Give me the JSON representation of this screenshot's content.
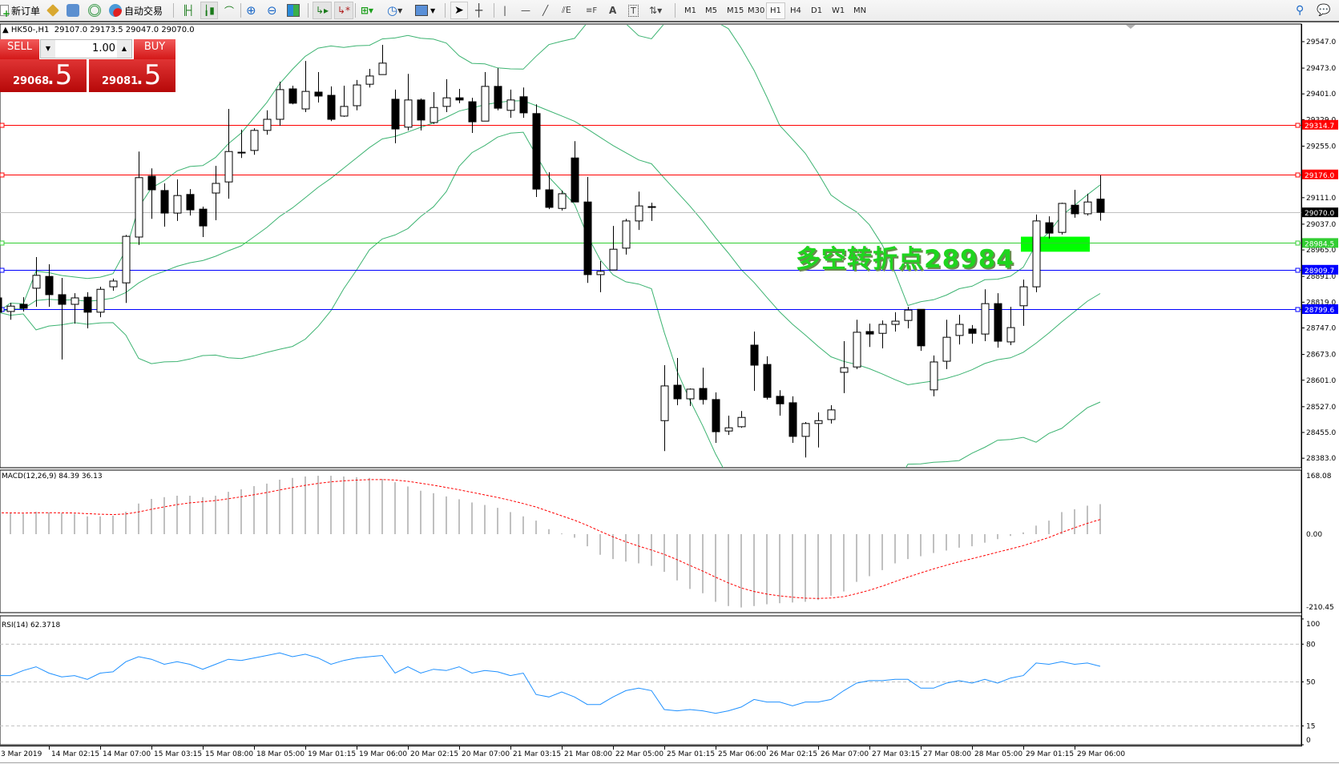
{
  "toolbar": {
    "new_order": "新订单",
    "auto_trading": "自动交易",
    "timeframes": [
      "M1",
      "M5",
      "M15",
      "M30",
      "H1",
      "H4",
      "D1",
      "W1",
      "MN"
    ],
    "active_timeframe": "H1"
  },
  "header": {
    "symbol": "HK50-,H1",
    "ohlc": "29107.0 29173.5 29047.0 29070.0"
  },
  "trade_panel": {
    "sell_label": "SELL",
    "buy_label": "BUY",
    "lot": "1.00",
    "sell_big": "29068",
    "sell_small": ".5",
    "buy_big": "29081",
    "buy_small": ".5"
  },
  "annotation": {
    "text": "多空转折点28984",
    "color": "#1ed51e"
  },
  "colors": {
    "bull": "#ffffff",
    "bear": "#000000",
    "bands": "#3cb371",
    "rsi": "#1e90ff",
    "macd_hist": "#c0c0c0",
    "signal": "#ff0000"
  },
  "chart_data": [
    {
      "type": "candlestick",
      "series_label": "HK50-,H1",
      "ylim": [
        28383,
        29547
      ],
      "ohlc": [
        [
          28831,
          28833,
          28789,
          28791
        ],
        [
          28793,
          28817,
          28770,
          28808
        ],
        [
          28813,
          28833,
          28793,
          28802
        ],
        [
          28858,
          28945,
          28806,
          28894
        ],
        [
          28891,
          28925,
          28806,
          28840
        ],
        [
          28840,
          28887,
          28659,
          28813
        ],
        [
          28813,
          28844,
          28759,
          28831
        ],
        [
          28833,
          28847,
          28746,
          28791
        ],
        [
          28791,
          28862,
          28777,
          28855
        ],
        [
          28862,
          28885,
          28851,
          28878
        ],
        [
          28873,
          29007,
          28817,
          29003
        ],
        [
          29001,
          29240,
          28979,
          29167
        ],
        [
          29171,
          29193,
          29052,
          29133
        ],
        [
          29131,
          29151,
          29030,
          29068
        ],
        [
          29068,
          29162,
          29046,
          29117
        ],
        [
          29120,
          29135,
          29061,
          29077
        ],
        [
          29079,
          29086,
          29001,
          29032
        ],
        [
          29124,
          29200,
          29048,
          29151
        ],
        [
          29155,
          29359,
          29108,
          29240
        ],
        [
          29236,
          29301,
          29222,
          29238
        ],
        [
          29243,
          29305,
          29231,
          29299
        ],
        [
          29299,
          29355,
          29287,
          29330
        ],
        [
          29330,
          29435,
          29312,
          29413
        ],
        [
          29415,
          29424,
          29372,
          29375
        ],
        [
          29359,
          29493,
          29350,
          29408
        ],
        [
          29406,
          29462,
          29377,
          29395
        ],
        [
          29397,
          29422,
          29325,
          29330
        ],
        [
          29339,
          29424,
          29337,
          29366
        ],
        [
          29368,
          29440,
          29355,
          29426
        ],
        [
          29428,
          29471,
          29419,
          29451
        ],
        [
          29455,
          29538,
          29455,
          29487
        ],
        [
          29386,
          29413,
          29263,
          29303
        ],
        [
          29308,
          29457,
          29299,
          29384
        ],
        [
          29384,
          29388,
          29299,
          29328
        ],
        [
          29321,
          29406,
          29317,
          29363
        ],
        [
          29366,
          29442,
          29350,
          29390
        ],
        [
          29390,
          29415,
          29375,
          29384
        ],
        [
          29379,
          29390,
          29292,
          29323
        ],
        [
          29325,
          29462,
          29325,
          29422
        ],
        [
          29422,
          29473,
          29355,
          29361
        ],
        [
          29355,
          29413,
          29334,
          29384
        ],
        [
          29393,
          29419,
          29334,
          29348
        ],
        [
          29346,
          29372,
          29113,
          29135
        ],
        [
          29133,
          29182,
          29079,
          29084
        ],
        [
          29081,
          29131,
          29075,
          29122
        ],
        [
          29222,
          29269,
          29099,
          29099
        ],
        [
          29099,
          29169,
          28873,
          28896
        ],
        [
          28896,
          28934,
          28847,
          28905
        ],
        [
          28909,
          29032,
          28909,
          28967
        ],
        [
          28970,
          29052,
          28952,
          29046
        ],
        [
          29046,
          29128,
          29021,
          29088
        ],
        [
          29086,
          29097,
          29046,
          29086
        ],
        [
          28488,
          28643,
          28403,
          28585
        ],
        [
          28587,
          28663,
          28531,
          28549
        ],
        [
          28549,
          28578,
          28529,
          28576
        ],
        [
          28578,
          28636,
          28533,
          28547
        ],
        [
          28547,
          28567,
          28426,
          28457
        ],
        [
          28459,
          28502,
          28448,
          28468
        ],
        [
          28471,
          28515,
          28468,
          28497
        ],
        [
          28699,
          28737,
          28571,
          28643
        ],
        [
          28645,
          28668,
          28547,
          28553
        ],
        [
          28556,
          28573,
          28502,
          28535
        ],
        [
          28538,
          28556,
          28426,
          28444
        ],
        [
          28444,
          28484,
          28385,
          28480
        ],
        [
          28480,
          28511,
          28413,
          28488
        ],
        [
          28491,
          28531,
          28480,
          28518
        ],
        [
          28623,
          28710,
          28565,
          28636
        ],
        [
          28638,
          28770,
          28632,
          28735
        ],
        [
          28737,
          28759,
          28694,
          28730
        ],
        [
          28732,
          28768,
          28690,
          28757
        ],
        [
          28757,
          28791,
          28737,
          28766
        ],
        [
          28768,
          28806,
          28746,
          28797
        ],
        [
          28799,
          28799,
          28683,
          28697
        ],
        [
          28574,
          28670,
          28556,
          28652
        ],
        [
          28654,
          28770,
          28632,
          28721
        ],
        [
          28726,
          28784,
          28701,
          28757
        ],
        [
          28744,
          28755,
          28703,
          28732
        ],
        [
          28730,
          28855,
          28710,
          28815
        ],
        [
          28815,
          28844,
          28692,
          28710
        ],
        [
          28708,
          28806,
          28699,
          28748
        ],
        [
          28809,
          28882,
          28753,
          28862
        ],
        [
          28862,
          29064,
          28847,
          29046
        ],
        [
          29041,
          29059,
          28997,
          29012
        ],
        [
          29014,
          29097,
          29008,
          29095
        ],
        [
          29090,
          29133,
          29055,
          29066
        ],
        [
          29066,
          29122,
          29061,
          29099
        ],
        [
          29107,
          29173.5,
          29047,
          29070
        ]
      ],
      "overlay": "Bollinger Bands (20, 2)",
      "y_ticks": [
        "29547.0",
        "29473.0",
        "29401.0",
        "29329.0",
        "29255.0",
        "29111.0",
        "29037.0",
        "28965.0",
        "28891.0",
        "28819.0",
        "28747.0",
        "28673.0",
        "28601.0",
        "28527.0",
        "28455.0",
        "28383.0"
      ],
      "hlines": [
        {
          "value": 29314.7,
          "label": "29314.7",
          "color": "#ff0000"
        },
        {
          "value": 29176.0,
          "label": "29176.0",
          "color": "#ff0000"
        },
        {
          "value": 29070.0,
          "label": "29070.0",
          "color": "#000000",
          "line": "#c0c0c0"
        },
        {
          "value": 28984.5,
          "label": "28984.5",
          "color": "#32cd32"
        },
        {
          "value": 28909.7,
          "label": "28909.7",
          "color": "#0000ff"
        },
        {
          "value": 28799.6,
          "label": "28799.6",
          "color": "#0000ff"
        }
      ],
      "zone": {
        "from": 28960,
        "to": 29002,
        "color": "#00ff00"
      },
      "x_tick_labels": [
        "3 Mar 2019",
        "14 Mar 02:15",
        "14 Mar 07:00",
        "15 Mar 03:15",
        "15 Mar 08:00",
        "18 Mar 05:00",
        "19 Mar 01:15",
        "19 Mar 06:00",
        "20 Mar 02:15",
        "20 Mar 07:00",
        "21 Mar 03:15",
        "21 Mar 08:00",
        "22 Mar 05:00",
        "25 Mar 01:15",
        "25 Mar 06:00",
        "26 Mar 02:15",
        "26 Mar 07:00",
        "27 Mar 03:15",
        "27 Mar 08:00",
        "28 Mar 05:00",
        "29 Mar 01:15",
        "29 Mar 06:00"
      ]
    },
    {
      "type": "bar",
      "title": "MACD(12,26,9) 84.39 36.13",
      "ylim": [
        -210.45,
        168.08
      ],
      "y_ticks": [
        "168.08",
        "0.00",
        "-210.45"
      ],
      "histogram": [
        60,
        59,
        57,
        63,
        61,
        59,
        57,
        50,
        50,
        52,
        63,
        86,
        99,
        104,
        108,
        108,
        104,
        108,
        119,
        126,
        135,
        142,
        153,
        158,
        162,
        164,
        164,
        162,
        160,
        158,
        155,
        146,
        134,
        122,
        115,
        106,
        98,
        89,
        82,
        74,
        62,
        50,
        38,
        14,
        2,
        -10,
        -34,
        -58,
        -70,
        -77,
        -82,
        -89,
        -106,
        -130,
        -154,
        -166,
        -190,
        -202,
        -206,
        -202,
        -197,
        -194,
        -192,
        -190,
        -185,
        -173,
        -161,
        -134,
        -118,
        -101,
        -82,
        -70,
        -62,
        -53,
        -46,
        -38,
        -34,
        -24,
        -14,
        -5,
        5,
        24,
        38,
        62,
        70,
        80,
        84.39
      ],
      "signal_last": 36.13
    },
    {
      "type": "line",
      "title": "RSI(14) 62.3718",
      "ylim": [
        0,
        100
      ],
      "levels": [
        80,
        50,
        15
      ],
      "y_ticks": [
        "100",
        "80",
        "50",
        "15",
        "0"
      ],
      "values": [
        55,
        55,
        59,
        62,
        57,
        54,
        55,
        52,
        57,
        58,
        66,
        70,
        68,
        64,
        66,
        64,
        60,
        64,
        68,
        67,
        69,
        71,
        73,
        70,
        72,
        69,
        64,
        67,
        69,
        70,
        71,
        57,
        62,
        57,
        60,
        59,
        62,
        57,
        59,
        58,
        55,
        57,
        40,
        38,
        42,
        38,
        32,
        32,
        38,
        43,
        45,
        43,
        28,
        27,
        28,
        27,
        25,
        27,
        30,
        36,
        34,
        34,
        31,
        34,
        34,
        36,
        43,
        49,
        51,
        51,
        52,
        52,
        45,
        45,
        49,
        51,
        49,
        52,
        49,
        53,
        55,
        65,
        64,
        66,
        64,
        65,
        62.3718
      ]
    }
  ]
}
